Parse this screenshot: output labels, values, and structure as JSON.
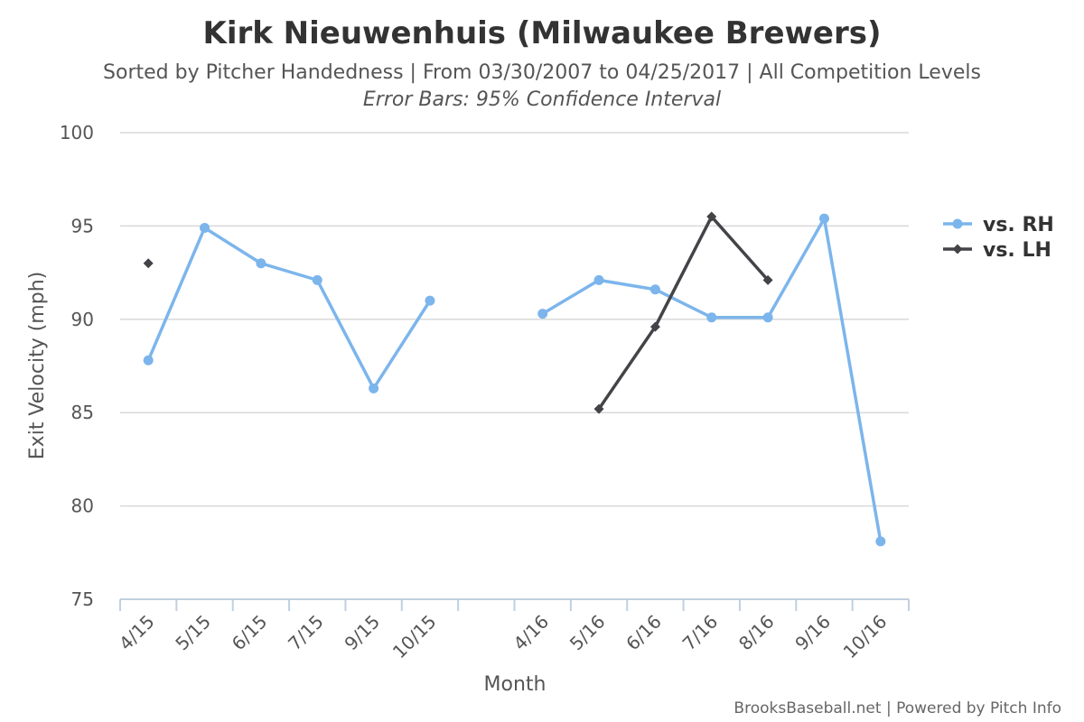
{
  "chart_data": {
    "type": "line",
    "title": "Kirk Nieuwenhuis (Milwaukee Brewers)",
    "subtitle": "Sorted by Pitcher Handedness | From 03/30/2007 to 04/25/2017 | All Competition Levels",
    "note": "Error Bars: 95% Confidence Interval",
    "xlabel": "Month",
    "ylabel": "Exit Velocity (mph)",
    "ylim": [
      75,
      100
    ],
    "yticks": [
      75,
      80,
      85,
      90,
      95,
      100
    ],
    "grid": true,
    "legend_position": "right",
    "categories": [
      "4/15",
      "5/15",
      "6/15",
      "7/15",
      "9/15",
      "10/15",
      "",
      "4/16",
      "5/16",
      "6/16",
      "7/16",
      "8/16",
      "9/16",
      "10/16"
    ],
    "series": [
      {
        "name": "vs. RH",
        "color": "#7cb5ec",
        "marker": "circle",
        "values": [
          87.8,
          94.9,
          93.0,
          92.1,
          86.3,
          91.0,
          null,
          90.3,
          92.1,
          91.6,
          90.1,
          90.1,
          95.4,
          78.1
        ]
      },
      {
        "name": "vs. LH",
        "color": "#434348",
        "marker": "diamond",
        "values": [
          93.0,
          null,
          null,
          null,
          null,
          null,
          null,
          null,
          85.2,
          89.6,
          95.5,
          92.1,
          null,
          null
        ]
      }
    ]
  },
  "credit": "BrooksBaseball.net | Powered by Pitch Info"
}
